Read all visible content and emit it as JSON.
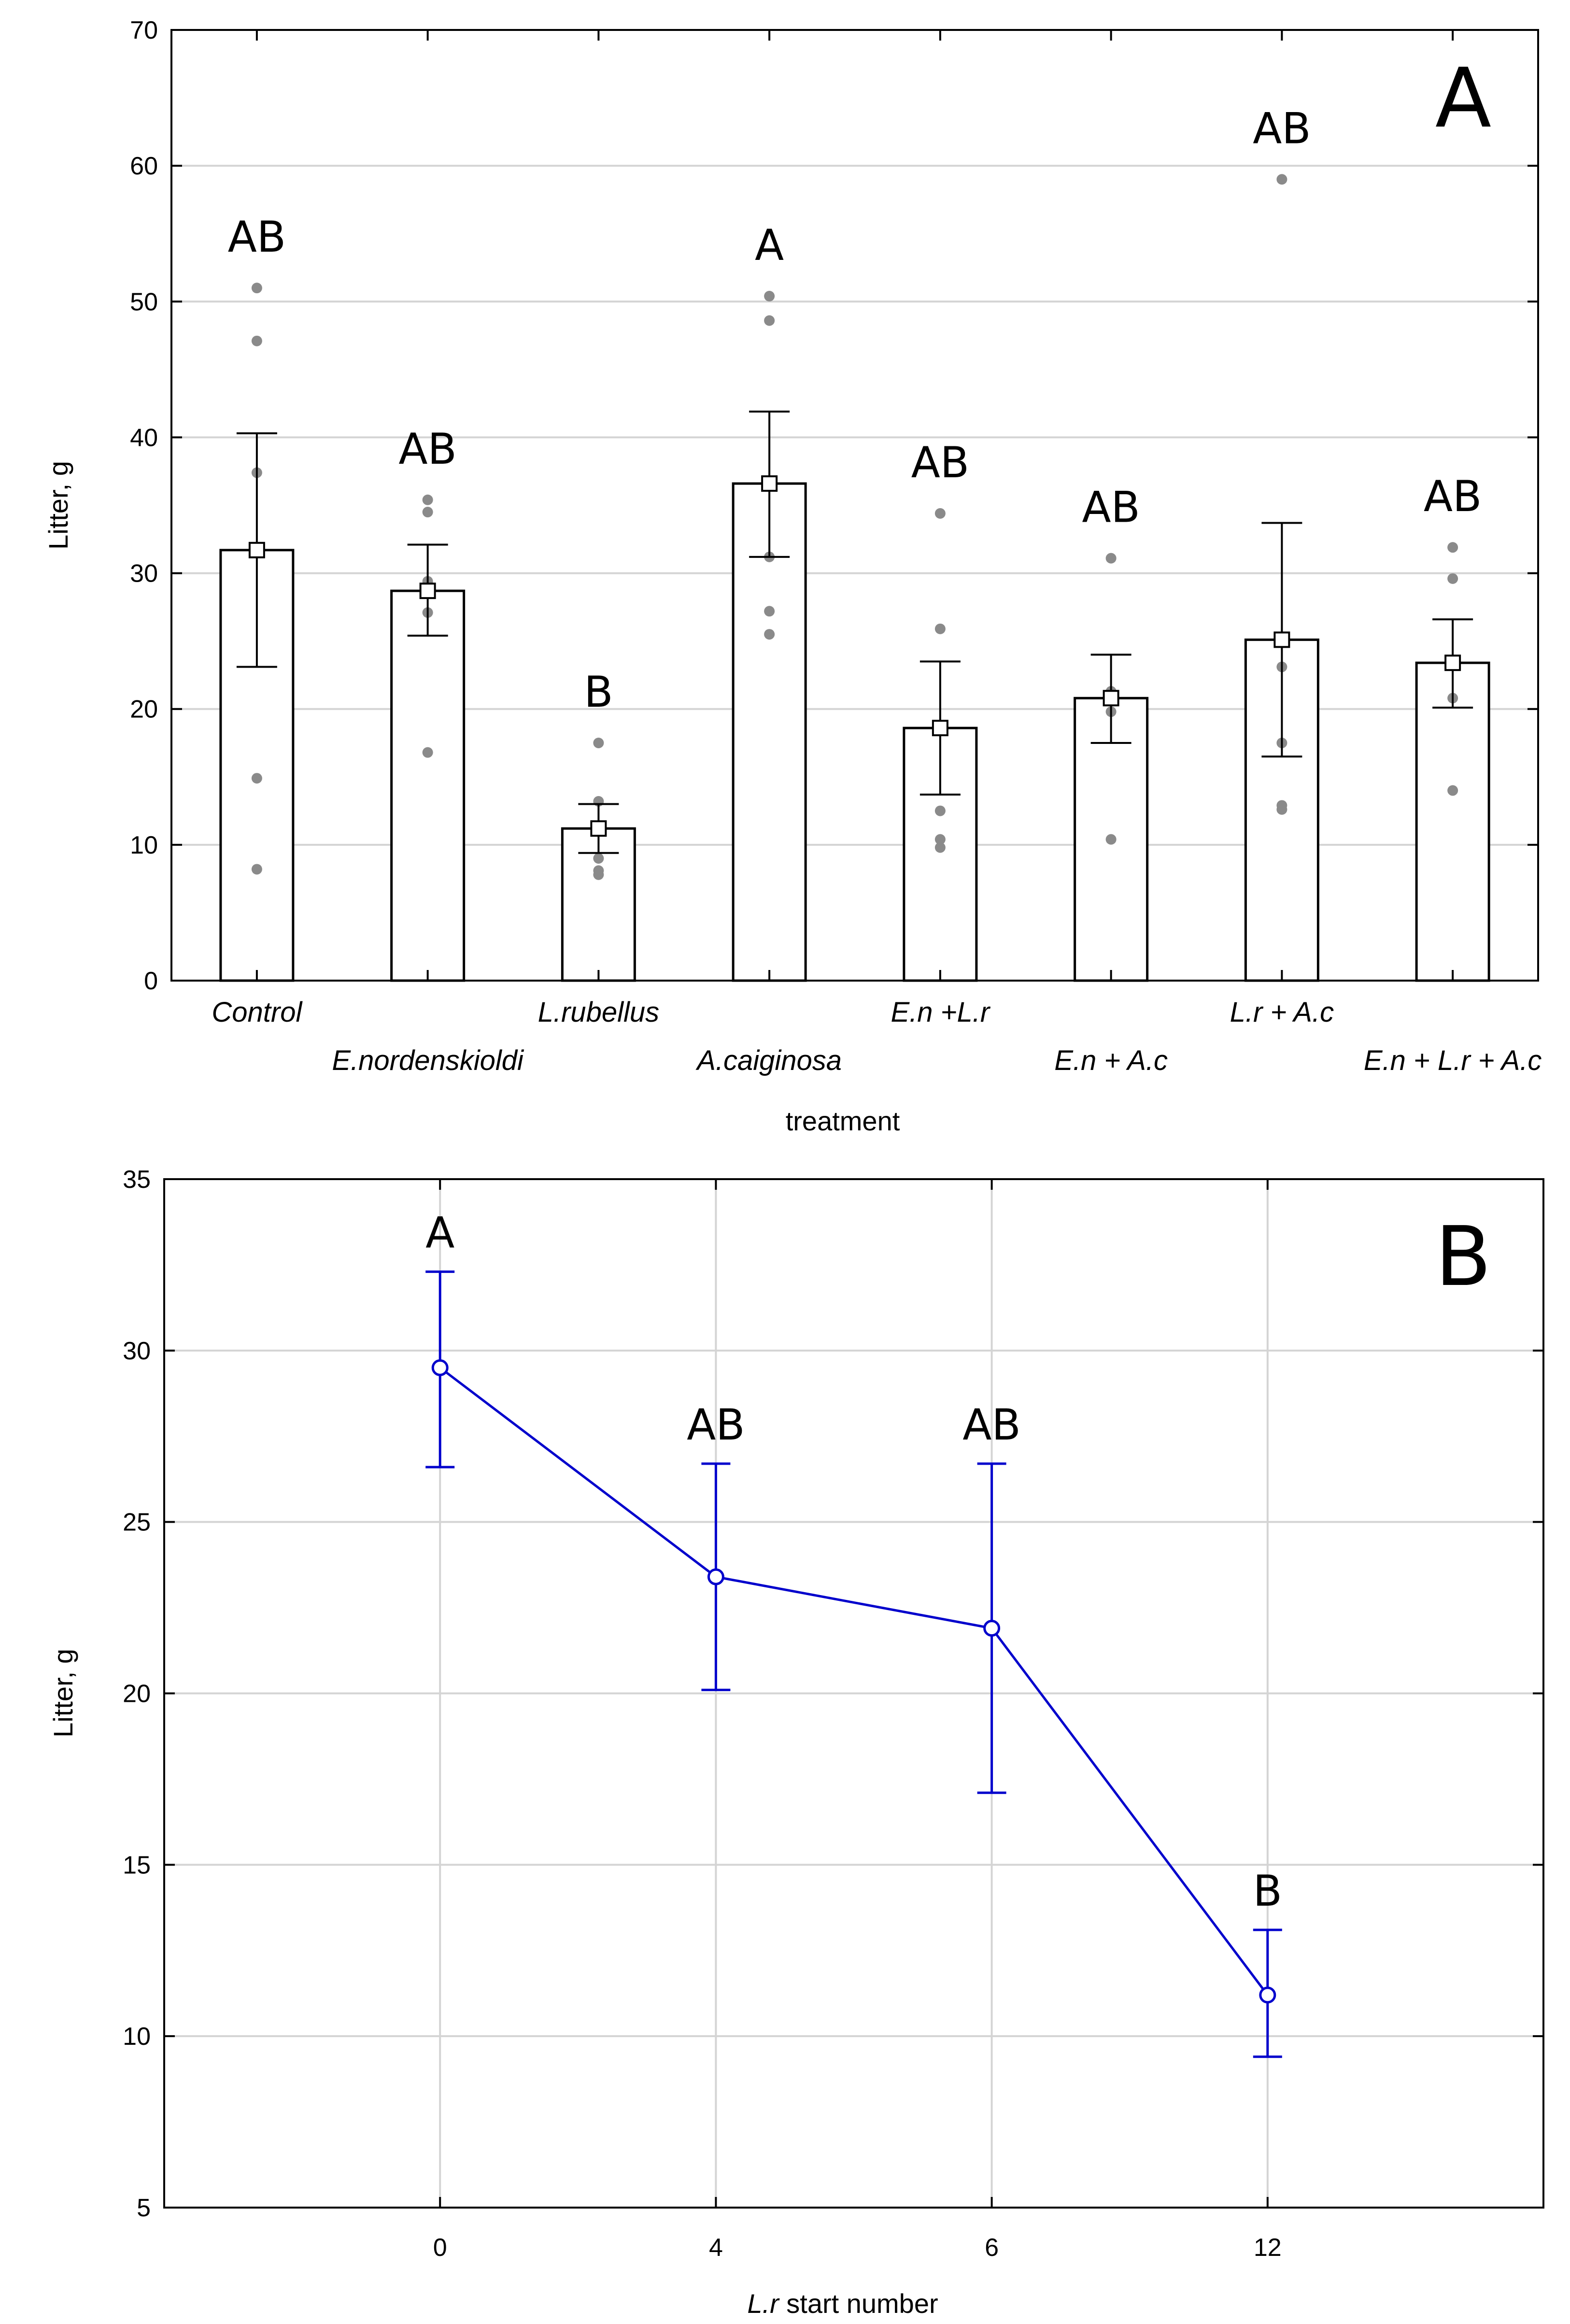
{
  "chart_data": [
    {
      "type": "bar",
      "panel_label": "A",
      "xlabel": "treatment",
      "ylabel": "Litter, g",
      "ylim": [
        0,
        70
      ],
      "yticks": [
        0,
        10,
        20,
        30,
        40,
        50,
        60,
        70
      ],
      "grid": true,
      "categories": [
        "Control",
        "E.nordenskioldi",
        "L.rubellus",
        "A.caiginosa",
        "E.n +L.r",
        "E.n + A.c",
        "L.r + A.c",
        "E.n + L.r + A.c"
      ],
      "values": [
        31.7,
        28.7,
        11.2,
        36.6,
        18.6,
        20.8,
        25.1,
        23.4
      ],
      "error_low": [
        23.1,
        25.4,
        9.4,
        31.2,
        13.7,
        17.5,
        16.5,
        20.1
      ],
      "error_high": [
        40.3,
        32.1,
        13.0,
        41.9,
        23.5,
        24.0,
        33.7,
        26.6
      ],
      "points": [
        [
          51.0,
          47.1,
          37.4,
          14.9,
          8.2
        ],
        [
          35.4,
          34.5,
          29.4,
          27.1,
          16.8
        ],
        [
          17.5,
          13.2,
          9.0,
          8.1,
          7.8
        ],
        [
          50.4,
          48.6,
          31.2,
          27.2,
          25.5
        ],
        [
          34.4,
          25.9,
          12.5,
          10.4,
          9.8
        ],
        [
          31.1,
          21.3,
          20.8,
          19.8,
          10.4
        ],
        [
          59.0,
          23.1,
          17.5,
          12.9,
          12.6
        ],
        [
          31.9,
          29.6,
          23.4,
          20.8,
          14.0
        ]
      ],
      "significance": [
        "AB",
        "AB",
        "B",
        "A",
        "AB",
        "AB",
        "AB",
        "AB"
      ]
    },
    {
      "type": "line",
      "panel_label": "B",
      "xlabel_italic": "L.r",
      "xlabel_rest": " start number",
      "ylabel": "Litter, g",
      "ylim": [
        5,
        35
      ],
      "yticks": [
        5,
        10,
        15,
        20,
        25,
        30,
        35
      ],
      "grid": true,
      "color": "#0000cc",
      "categories": [
        "0",
        "4",
        "6",
        "12"
      ],
      "values": [
        29.5,
        23.4,
        21.9,
        11.2
      ],
      "error_low": [
        26.6,
        20.1,
        17.1,
        9.4
      ],
      "error_high": [
        32.3,
        26.7,
        26.7,
        13.1
      ],
      "significance": [
        "A",
        "AB",
        "AB",
        "B"
      ]
    }
  ]
}
